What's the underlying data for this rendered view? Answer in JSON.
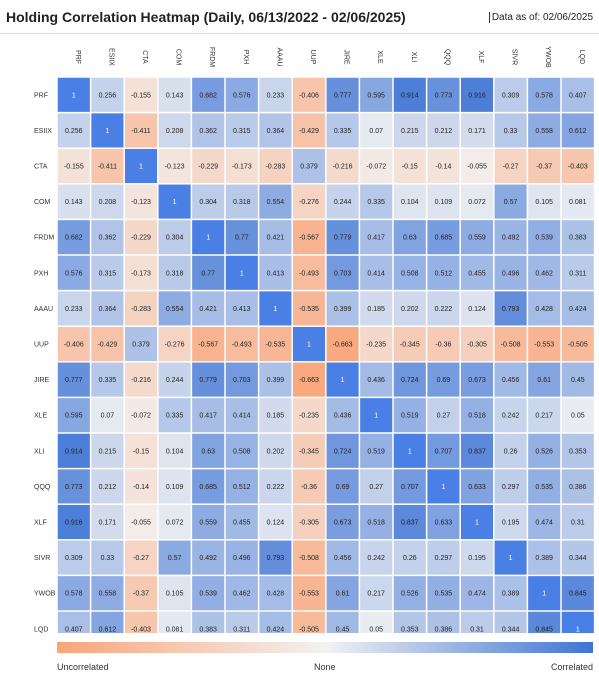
{
  "title": "Holding Correlation Heatmap (Daily, 06/13/2022 - 02/06/2025)",
  "as_of": "Data as of: 02/06/2025",
  "scale": {
    "low": "Uncorrelated",
    "mid": "None",
    "high": "Correlated"
  },
  "colors": {
    "negative": "#f9a57a",
    "neutral": "#f2f2f2",
    "positive": "#3f74d6",
    "one": "#4a80e6"
  },
  "chart_data": {
    "type": "heatmap",
    "tickers": [
      "PRF",
      "ESIIX",
      "CTA",
      "COM",
      "FRDM",
      "PXH",
      "AAAU",
      "UUP",
      "JIRE",
      "XLE",
      "XLI",
      "QQQ",
      "XLF",
      "SIVR",
      "YWOB",
      "LQD"
    ],
    "labels": [
      [
        "1",
        "0.256",
        "-0.155",
        "0.143",
        "0.682",
        "0.576",
        "0.233",
        "-0.406",
        "0.777",
        "0.595",
        "0.914",
        "0.773",
        "0.916",
        "0.309",
        "0.578",
        "0.407"
      ],
      [
        "0.256",
        "1",
        "-0.411",
        "0.208",
        "0.362",
        "0.315",
        "0.364",
        "-0.429",
        "0.335",
        "0.07",
        "0.215",
        "0.212",
        "0.171",
        "0.33",
        "0.558",
        "0.612"
      ],
      [
        "-0.155",
        "-0.411",
        "1",
        "-0.123",
        "-0.229",
        "-0.173",
        "-0.283",
        "0.379",
        "-0.216",
        "-0.072",
        "-0.15",
        "-0.14",
        "-0.055",
        "-0.27",
        "-0.37",
        "-0.403"
      ],
      [
        "0.143",
        "0.208",
        "-0.123",
        "1",
        "0.304",
        "0.318",
        "0.554",
        "-0.276",
        "0.244",
        "0.335",
        "0.104",
        "0.109",
        "0.072",
        "0.57",
        "0.105",
        "0.081"
      ],
      [
        "0.682",
        "0.362",
        "-0.229",
        "0.304",
        "1",
        "0.77",
        "0.421",
        "-0.567",
        "0.779",
        "0.417",
        "0.63",
        "0.685",
        "0.559",
        "0.492",
        "0.539",
        "0.383"
      ],
      [
        "0.576",
        "0.315",
        "-0.173",
        "0.318",
        "0.77",
        "1",
        "0.413",
        "-0.493",
        "0.703",
        "0.414",
        "0.508",
        "0.512",
        "0.455",
        "0.496",
        "0.462",
        "0.311"
      ],
      [
        "0.233",
        "0.364",
        "-0.283",
        "0.554",
        "0.421",
        "0.413",
        "1",
        "-0.535",
        "0.399",
        "0.185",
        "0.202",
        "0.222",
        "0.124",
        "0.793",
        "0.428",
        "0.424"
      ],
      [
        "-0.406",
        "-0.429",
        "0.379",
        "-0.276",
        "-0.567",
        "-0.493",
        "-0.535",
        "1",
        "-0.663",
        "-0.235",
        "-0.345",
        "-0.36",
        "-0.305",
        "-0.508",
        "-0.553",
        "-0.505"
      ],
      [
        "0.777",
        "0.335",
        "-0.216",
        "0.244",
        "0.779",
        "0.703",
        "0.399",
        "-0.663",
        "1",
        "0.436",
        "0.724",
        "0.69",
        "0.673",
        "0.456",
        "0.61",
        "0.45"
      ],
      [
        "0.595",
        "0.07",
        "-0.072",
        "0.335",
        "0.417",
        "0.414",
        "0.185",
        "-0.235",
        "0.436",
        "1",
        "0.519",
        "0.27",
        "0.518",
        "0.242",
        "0.217",
        "0.05"
      ],
      [
        "0.914",
        "0.215",
        "-0.15",
        "0.104",
        "0.63",
        "0.508",
        "0.202",
        "-0.345",
        "0.724",
        "0.519",
        "1",
        "0.707",
        "0.837",
        "0.26",
        "0.526",
        "0.353"
      ],
      [
        "0.773",
        "0.212",
        "-0.14",
        "0.109",
        "0.685",
        "0.512",
        "0.222",
        "-0.36",
        "0.69",
        "0.27",
        "0.707",
        "1",
        "0.633",
        "0.297",
        "0.535",
        "0.386"
      ],
      [
        "0.916",
        "0.171",
        "-0.055",
        "0.072",
        "0.559",
        "0.455",
        "0.124",
        "-0.305",
        "0.673",
        "0.518",
        "0.837",
        "0.633",
        "1",
        "0.195",
        "0.474",
        "0.31"
      ],
      [
        "0.309",
        "0.33",
        "-0.27",
        "0.57",
        "0.492",
        "0.496",
        "0.793",
        "-0.508",
        "0.456",
        "0.242",
        "0.26",
        "0.297",
        "0.195",
        "1",
        "0.389",
        "0.344"
      ],
      [
        "0.578",
        "0.558",
        "-0.37",
        "0.105",
        "0.539",
        "0.462",
        "0.428",
        "-0.553",
        "0.61",
        "0.217",
        "0.526",
        "0.535",
        "0.474",
        "0.389",
        "1",
        "0.845"
      ],
      [
        "0.407",
        "0.612",
        "-0.403",
        "0.081",
        "0.383",
        "0.311",
        "0.424",
        "-0.505",
        "0.45",
        "0.05",
        "0.353",
        "0.386",
        "0.31",
        "0.344",
        "0.845",
        "1"
      ]
    ]
  }
}
